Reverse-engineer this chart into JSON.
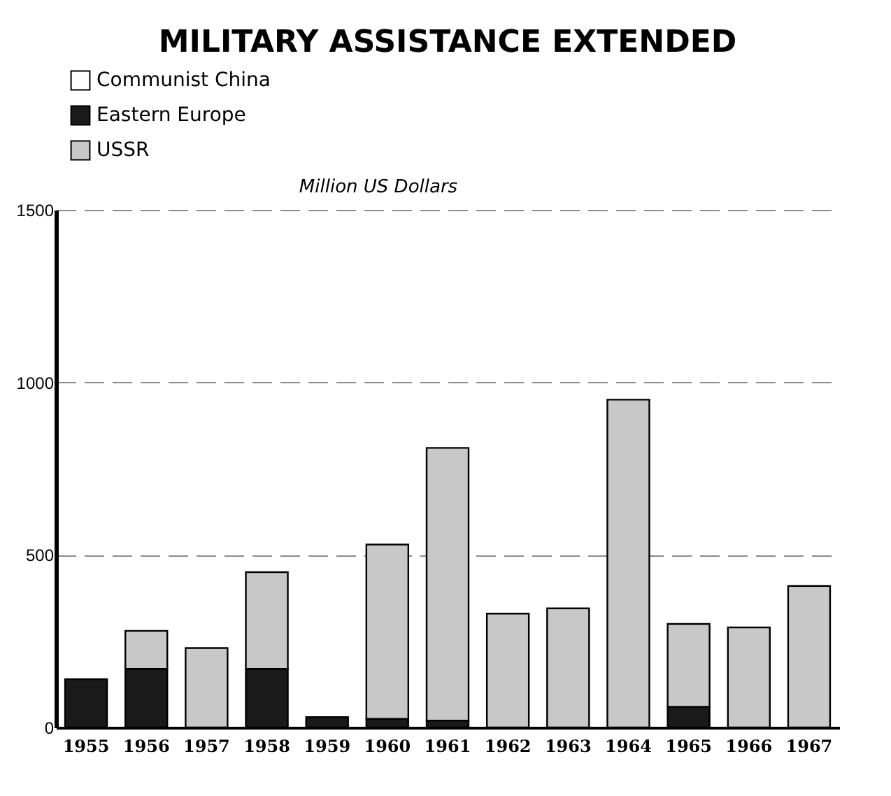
{
  "chart_data": {
    "type": "bar",
    "title": "MILITARY ASSISTANCE EXTENDED",
    "ylabel": "Million US Dollars",
    "categories": [
      "1955",
      "1956",
      "1957",
      "1958",
      "1959",
      "1960",
      "1961",
      "1962",
      "1963",
      "1964",
      "1965",
      "1966",
      "1967"
    ],
    "series": [
      {
        "name": "Communist China",
        "color": "#ffffff",
        "values": [
          null,
          null,
          null,
          null,
          null,
          null,
          null,
          null,
          null,
          null,
          null,
          null,
          null
        ]
      },
      {
        "name": "Eastern Europe",
        "color": "#1a1a1a",
        "values": [
          140,
          170,
          null,
          170,
          30,
          25,
          20,
          null,
          null,
          null,
          60,
          null,
          null
        ]
      },
      {
        "name": "USSR",
        "color": "#c8c8c8",
        "values": [
          null,
          110,
          230,
          280,
          null,
          505,
          790,
          330,
          345,
          950,
          240,
          290,
          410
        ]
      }
    ],
    "stacked": true,
    "ylim": [
      0,
      1500
    ],
    "yticks": [
      0,
      500,
      1000,
      1500
    ],
    "grid": "y",
    "legend": "top left"
  }
}
